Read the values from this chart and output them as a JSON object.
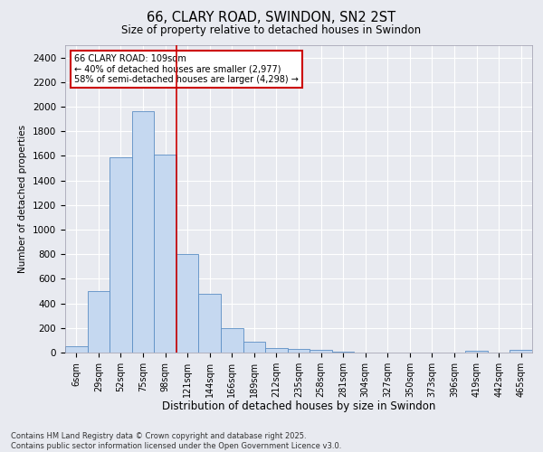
{
  "title": "66, CLARY ROAD, SWINDON, SN2 2ST",
  "subtitle": "Size of property relative to detached houses in Swindon",
  "xlabel": "Distribution of detached houses by size in Swindon",
  "ylabel": "Number of detached properties",
  "footer_line1": "Contains HM Land Registry data © Crown copyright and database right 2025.",
  "footer_line2": "Contains public sector information licensed under the Open Government Licence v3.0.",
  "annotation_title": "66 CLARY ROAD: 109sqm",
  "annotation_line1": "← 40% of detached houses are smaller (2,977)",
  "annotation_line2": "58% of semi-detached houses are larger (4,298) →",
  "bar_color": "#c5d8f0",
  "bar_edge_color": "#5b8ec4",
  "background_color": "#e8eaf0",
  "annotation_box_color": "#ffffff",
  "annotation_box_edge": "#cc0000",
  "grid_color": "#ffffff",
  "categories": [
    "6sqm",
    "29sqm",
    "52sqm",
    "75sqm",
    "98sqm",
    "121sqm",
    "144sqm",
    "166sqm",
    "189sqm",
    "212sqm",
    "235sqm",
    "258sqm",
    "281sqm",
    "304sqm",
    "327sqm",
    "350sqm",
    "373sqm",
    "396sqm",
    "419sqm",
    "442sqm",
    "465sqm"
  ],
  "values": [
    55,
    500,
    1590,
    1960,
    1610,
    800,
    475,
    195,
    90,
    40,
    30,
    20,
    10,
    0,
    0,
    0,
    0,
    0,
    15,
    0,
    25
  ],
  "ylim": [
    0,
    2500
  ],
  "yticks": [
    0,
    200,
    400,
    600,
    800,
    1000,
    1200,
    1400,
    1600,
    1800,
    2000,
    2200,
    2400
  ],
  "marker_bin_index": 4,
  "marker_color": "#cc0000"
}
